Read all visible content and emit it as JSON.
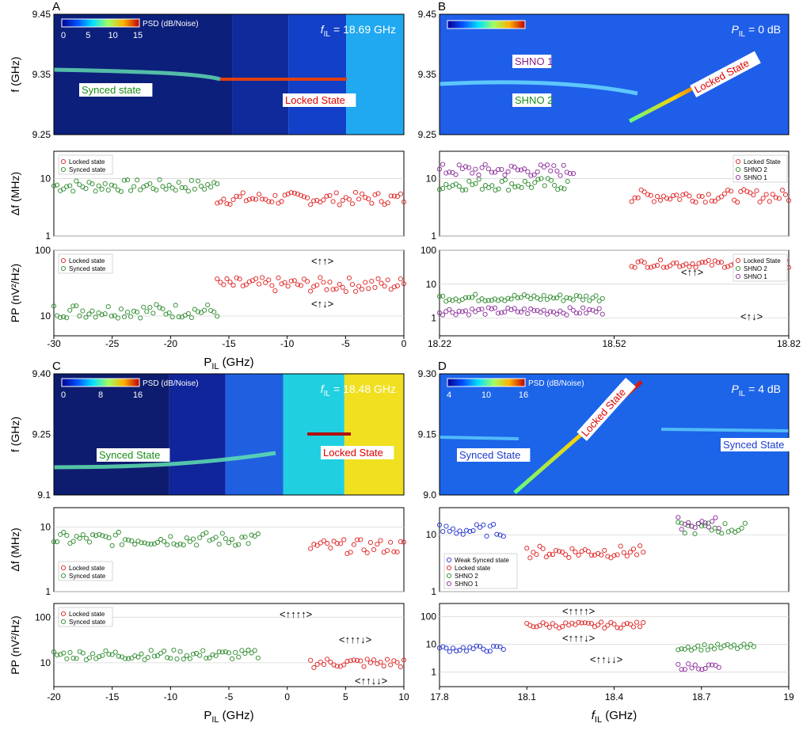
{
  "figure": {
    "panels": [
      {
        "letter": "A",
        "xlabel": "P_IL (GHz)",
        "x_ticks": [
          "-30",
          "-25",
          "-20",
          "-15",
          "-10",
          "-5",
          "0"
        ],
        "xlim": [
          -30,
          0
        ],
        "spectrogram": {
          "ylabel": "f (GHz)",
          "y_ticks": [
            "9.25",
            "9.35",
            "9.45"
          ],
          "ylim": [
            9.25,
            9.45
          ],
          "colorbar_label": "PSD (dB/Noise)",
          "colorbar_ticks": [
            "0",
            "5",
            "10",
            "15"
          ],
          "corner_label": {
            "sym": "f",
            "sub": "IL",
            "value": "= 18.69 GHz"
          },
          "labels": [
            {
              "text": "Synced state",
              "color": "#1a8f1a"
            },
            {
              "text": "Locked State",
              "color": "#e00000"
            }
          ]
        },
        "linewidth": {
          "ylabel": "Δf (MHz)",
          "y_ticks": [
            "1",
            "10"
          ],
          "legend": [
            {
              "text": "Locked state",
              "color": "#e02020"
            },
            {
              "text": "Synced state",
              "color": "#2a8a2a"
            }
          ]
        },
        "power": {
          "ylabel": "PP (nV²/Hz)",
          "y_ticks": [
            "10",
            "100"
          ],
          "legend": [
            {
              "text": "Locked state",
              "color": "#e02020"
            },
            {
              "text": "Synced state",
              "color": "#2a8a2a"
            }
          ],
          "annotations": [
            "<↑↑>",
            "<↑↓>"
          ]
        }
      },
      {
        "letter": "B",
        "xlabel": "",
        "x_ticks": [
          "18.22",
          "18.52",
          "18.82"
        ],
        "xlim": [
          18.22,
          18.82
        ],
        "spectrogram": {
          "ylabel": "",
          "y_ticks": [
            "9.25",
            "9.35",
            "9.45"
          ],
          "ylim": [
            9.25,
            9.45
          ],
          "colorbar_label": "",
          "colorbar_ticks": [],
          "corner_label": {
            "sym": "P",
            "sub": "IL",
            "value": "= 0 dB"
          },
          "labels": [
            {
              "text": "SHNO 1",
              "color": "#8a1f8a"
            },
            {
              "text": "SHNO 2",
              "color": "#1a8f1a"
            },
            {
              "text": "Locked State",
              "color": "#e00000"
            }
          ]
        },
        "linewidth": {
          "ylabel": "",
          "y_ticks": [
            "1",
            "10"
          ],
          "legend": [
            {
              "text": "Locked State",
              "color": "#e02020"
            },
            {
              "text": "SHNO 2",
              "color": "#2a8a2a"
            },
            {
              "text": "SHNO 1",
              "color": "#8a2a9a"
            }
          ]
        },
        "power": {
          "ylabel": "",
          "y_ticks": [
            "1",
            "10",
            "100"
          ],
          "legend": [
            {
              "text": "Locked State",
              "color": "#e02020"
            },
            {
              "text": "SHNO 2",
              "color": "#2a8a2a"
            },
            {
              "text": "SHNO 1",
              "color": "#8a2a9a"
            }
          ],
          "annotations": [
            "<↑↑>",
            "<↑↓>"
          ]
        }
      },
      {
        "letter": "C",
        "xlabel": "P_IL (GHz)",
        "x_ticks": [
          "-20",
          "-15",
          "-10",
          "-5",
          "0",
          "5",
          "10"
        ],
        "xlim": [
          -20,
          10
        ],
        "spectrogram": {
          "ylabel": "f (GHz)",
          "y_ticks": [
            "9.1",
            "9.25",
            "9.40"
          ],
          "ylim": [
            9.1,
            9.4
          ],
          "colorbar_label": "PSD (dB/Noise)",
          "colorbar_ticks": [
            "0",
            "8",
            "16"
          ],
          "corner_label": {
            "sym": "f",
            "sub": "IL",
            "value": "= 18.48 GHz"
          },
          "labels": [
            {
              "text": "Synced State",
              "color": "#1a8f1a"
            },
            {
              "text": "Locked State",
              "color": "#e00000"
            }
          ]
        },
        "linewidth": {
          "ylabel": "Δf (MHz)",
          "y_ticks": [
            "1",
            "10"
          ],
          "legend": [
            {
              "text": "Locked state",
              "color": "#e02020"
            },
            {
              "text": "Synced state",
              "color": "#2a8a2a"
            }
          ]
        },
        "power": {
          "ylabel": "PP (nV²/Hz)",
          "y_ticks": [
            "10",
            "100"
          ],
          "legend": [
            {
              "text": "Locked state",
              "color": "#e02020"
            },
            {
              "text": "Synced state",
              "color": "#2a8a2a"
            }
          ],
          "annotations": [
            "<↑↑↑↑>",
            "<↑↑↑↓>",
            "<↑↑↓↓>"
          ]
        }
      },
      {
        "letter": "D",
        "xlabel": "f_IL (GHz)",
        "x_ticks": [
          "17.8",
          "18.1",
          "18.4",
          "18.7",
          "19"
        ],
        "xlim": [
          17.8,
          19.0
        ],
        "spectrogram": {
          "ylabel": "",
          "y_ticks": [
            "9.0",
            "9.15",
            "9.30"
          ],
          "ylim": [
            9.0,
            9.3
          ],
          "colorbar_label": "PSD (dB/Noise)",
          "colorbar_ticks": [
            "4",
            "10",
            "16"
          ],
          "corner_label": {
            "sym": "P",
            "sub": "IL",
            "value": "= 4 dB"
          },
          "labels": [
            {
              "text": "Synced State",
              "color": "#1a3ad0"
            },
            {
              "text": "Locked State",
              "color": "#e00000"
            },
            {
              "text": "Synced State",
              "color": "#1a3ad0"
            }
          ]
        },
        "linewidth": {
          "ylabel": "",
          "y_ticks": [
            "1",
            "10"
          ],
          "legend": [
            {
              "text": "Weak Synced state",
              "color": "#2030d0"
            },
            {
              "text": "Locked state",
              "color": "#e02020"
            },
            {
              "text": "SHNO 2",
              "color": "#2a8a2a"
            },
            {
              "text": "SHNO 1",
              "color": "#8a2a9a"
            }
          ]
        },
        "power": {
          "ylabel": "",
          "y_ticks": [
            "1",
            "10",
            "100"
          ],
          "legend": [],
          "annotations": [
            "<↑↑↑↑>",
            "<↑↑↑↓>",
            "<↑↑↓↓>"
          ]
        }
      }
    ]
  },
  "chart_data": [
    {
      "type": "scatter",
      "panel": "A",
      "subplot": "linewidth",
      "y_scale": "log",
      "ylim": [
        1,
        30
      ],
      "series": [
        {
          "name": "Synced state",
          "color": "#2a8a2a",
          "x_range": [
            -30,
            -16
          ],
          "y_approx": 7.5
        },
        {
          "name": "Locked state",
          "color": "#e02020",
          "x_range": [
            -16,
            0
          ],
          "y_approx": 4.5
        }
      ]
    },
    {
      "type": "scatter",
      "panel": "A",
      "subplot": "power",
      "y_scale": "log",
      "ylim": [
        5,
        100
      ],
      "series": [
        {
          "name": "Synced state",
          "color": "#2a8a2a",
          "x_range": [
            -30,
            -16
          ],
          "y_approx": 12
        },
        {
          "name": "Locked state",
          "color": "#e02020",
          "x_range": [
            -16,
            0
          ],
          "y_approx": 30
        }
      ]
    },
    {
      "type": "scatter",
      "panel": "B",
      "subplot": "linewidth",
      "y_scale": "log",
      "ylim": [
        1,
        30
      ],
      "series": [
        {
          "name": "SHNO 2",
          "color": "#2a8a2a",
          "x_range": [
            18.22,
            18.44
          ],
          "y_approx": 8
        },
        {
          "name": "SHNO 1",
          "color": "#8a2a9a",
          "x_range": [
            18.22,
            18.45
          ],
          "y_approx": 14
        },
        {
          "name": "Locked State",
          "color": "#e02020",
          "x_range": [
            18.55,
            18.82
          ],
          "y_approx": 5
        }
      ]
    },
    {
      "type": "scatter",
      "panel": "B",
      "subplot": "power",
      "y_scale": "log",
      "ylim": [
        0.3,
        100
      ],
      "series": [
        {
          "name": "SHNO 2",
          "color": "#2a8a2a",
          "x_range": [
            18.22,
            18.5
          ],
          "y_approx": 4
        },
        {
          "name": "SHNO 1",
          "color": "#8a2a9a",
          "x_range": [
            18.22,
            18.5
          ],
          "y_approx": 1.6
        },
        {
          "name": "Locked State",
          "color": "#e02020",
          "x_range": [
            18.55,
            18.82
          ],
          "y_approx": 40
        }
      ]
    },
    {
      "type": "scatter",
      "panel": "C",
      "subplot": "linewidth",
      "y_scale": "log",
      "ylim": [
        1,
        20
      ],
      "series": [
        {
          "name": "Synced state",
          "color": "#2a8a2a",
          "x_range": [
            -20,
            -2.5
          ],
          "y_approx": 6.5
        },
        {
          "name": "Locked state",
          "color": "#e02020",
          "x_range": [
            2,
            10
          ],
          "y_approx": 5
        }
      ]
    },
    {
      "type": "scatter",
      "panel": "C",
      "subplot": "power",
      "y_scale": "log",
      "ylim": [
        3,
        200
      ],
      "series": [
        {
          "name": "Synced state",
          "color": "#2a8a2a",
          "x_range": [
            -20,
            -2.5
          ],
          "y_approx": 15
        },
        {
          "name": "Locked state",
          "color": "#e02020",
          "x_range": [
            2,
            10
          ],
          "y_approx": 10
        }
      ]
    },
    {
      "type": "scatter",
      "panel": "D",
      "subplot": "linewidth",
      "y_scale": "log",
      "ylim": [
        1,
        30
      ],
      "series": [
        {
          "name": "Weak Synced state",
          "color": "#2030d0",
          "x_range": [
            17.8,
            18.02
          ],
          "y_approx": 12
        },
        {
          "name": "Locked state",
          "color": "#e02020",
          "x_range": [
            18.1,
            18.5
          ],
          "y_approx": 5
        },
        {
          "name": "SHNO 2",
          "color": "#2a8a2a",
          "x_range": [
            18.62,
            18.85
          ],
          "y_approx": 13
        },
        {
          "name": "SHNO 1",
          "color": "#8a2a9a",
          "x_range": [
            18.62,
            18.76
          ],
          "y_approx": 16
        }
      ]
    },
    {
      "type": "scatter",
      "panel": "D",
      "subplot": "power",
      "y_scale": "log",
      "ylim": [
        0.3,
        300
      ],
      "series": [
        {
          "name": "Weak Synced state",
          "color": "#2030d0",
          "x_range": [
            17.8,
            18.02
          ],
          "y_approx": 7
        },
        {
          "name": "Locked state",
          "color": "#e02020",
          "x_range": [
            18.1,
            18.5
          ],
          "y_approx": 50
        },
        {
          "name": "SHNO 2",
          "color": "#2a8a2a",
          "x_range": [
            18.62,
            18.88
          ],
          "y_approx": 8
        },
        {
          "name": "SHNO 1",
          "color": "#8a2a9a",
          "x_range": [
            18.62,
            18.76
          ],
          "y_approx": 1.6
        }
      ]
    }
  ]
}
